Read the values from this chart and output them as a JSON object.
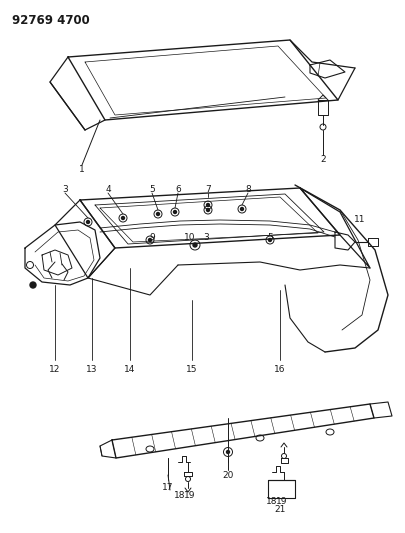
{
  "title": "92769 4700",
  "bg_color": "#ffffff",
  "line_color": "#1a1a1a",
  "fig_width": 4.05,
  "fig_height": 5.33,
  "dpi": 100
}
